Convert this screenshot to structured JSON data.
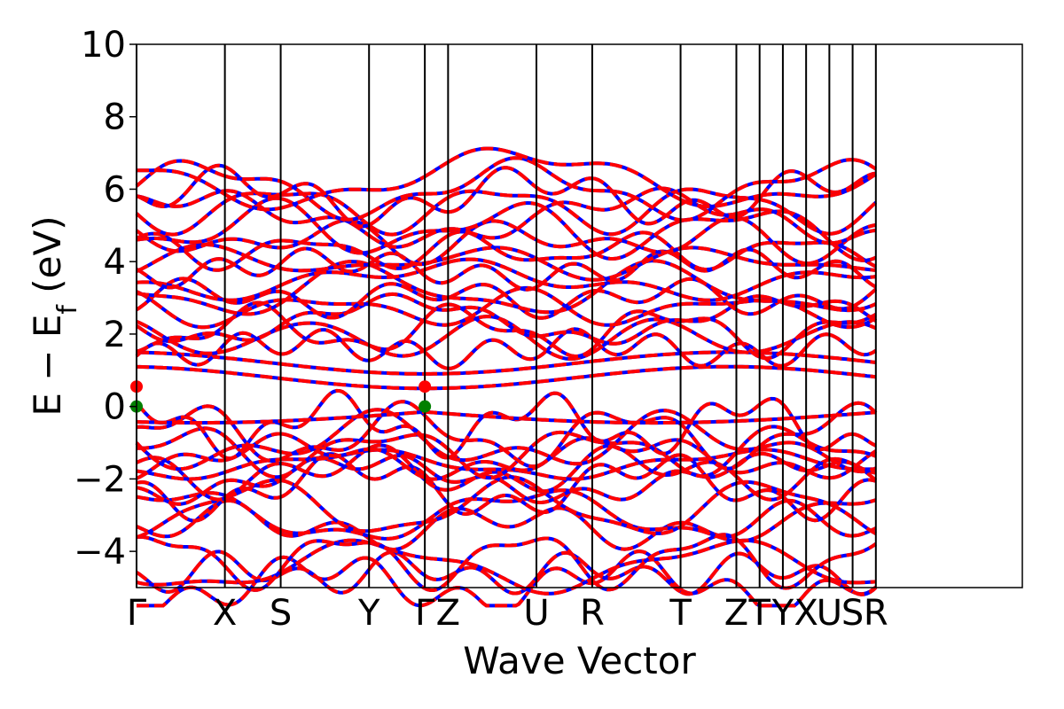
{
  "chart_data": {
    "type": "line",
    "title": "",
    "xlabel": "Wave Vector",
    "ylabel_main": "E − E",
    "ylabel_sub": "f",
    "ylabel_unit": " (eV)",
    "ylim": [
      -5,
      10
    ],
    "yticks": [
      -4,
      -2,
      0,
      2,
      4,
      6,
      8,
      10
    ],
    "ytick_labels": [
      "−4",
      "−2",
      "0",
      "2",
      "4",
      "6",
      "8",
      "10"
    ],
    "xlim": [
      0,
      7.62
    ],
    "kpoints": [
      {
        "label": "Γ",
        "x": 0.0
      },
      {
        "label": "X",
        "x": 0.76
      },
      {
        "label": "S",
        "x": 1.24
      },
      {
        "label": "Y",
        "x": 2.0
      },
      {
        "label": "Γ",
        "x": 2.48
      },
      {
        "label": "Z",
        "x": 2.68
      },
      {
        "label": "U",
        "x": 3.44
      },
      {
        "label": "R",
        "x": 3.92
      },
      {
        "label": "T",
        "x": 4.68
      },
      {
        "label": "Z",
        "x": 5.16
      },
      {
        "label": "T",
        "x": 5.36
      },
      {
        "label": "Y",
        "x": 5.56
      },
      {
        "label": "X",
        "x": 5.76
      },
      {
        "label": "U",
        "x": 5.96
      },
      {
        "label": "S",
        "x": 6.16
      },
      {
        "label": "R",
        "x": 6.36
      }
    ],
    "series": [
      {
        "color": "#0000ff"
      },
      {
        "color": "#ff0000"
      }
    ],
    "valence_band_max": {
      "x": [
        0.0,
        2.48
      ],
      "y": [
        0.0,
        0.0
      ],
      "color": "#008000"
    },
    "conduction_band_min": {
      "x": [
        0.0,
        2.48
      ],
      "y": [
        0.55,
        0.55
      ],
      "color": "#ff0000"
    },
    "grid": false
  }
}
